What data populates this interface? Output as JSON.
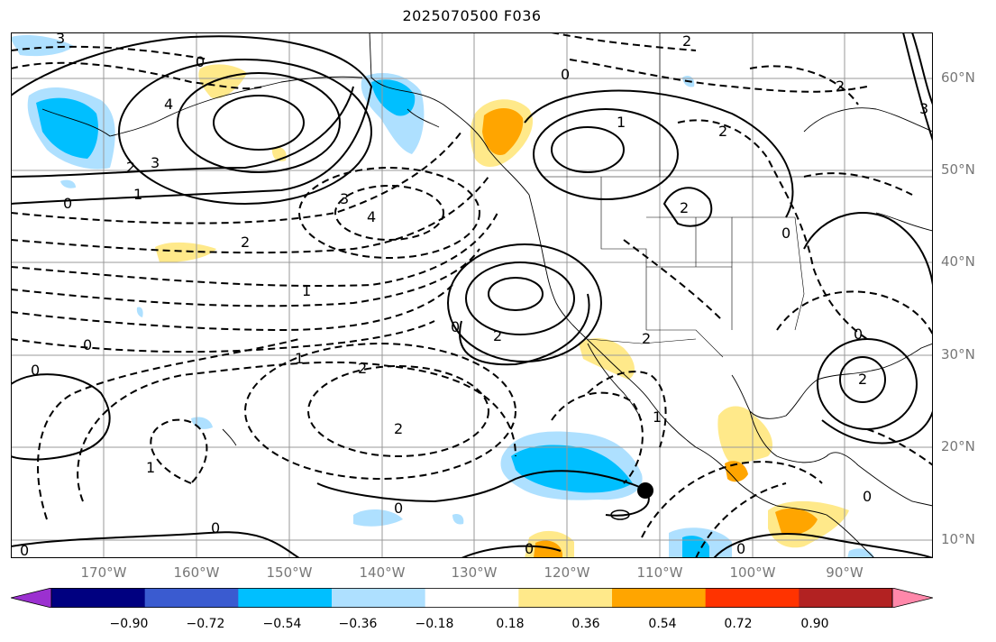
{
  "title": "2025070500 F036",
  "lat_labels": [
    "60°N",
    "50°N",
    "40°N",
    "30°N",
    "20°N",
    "10°N"
  ],
  "lon_labels": [
    "170°W",
    "160°W",
    "150°W",
    "140°W",
    "130°W",
    "120°W",
    "110°W",
    "100°W",
    "90°W"
  ],
  "contour_labels": [
    "0",
    "1",
    "2",
    "3",
    "4",
    "-1",
    "-2",
    "-3",
    "-4"
  ],
  "colorbar": {
    "ticks": [
      "−0.90",
      "−0.72",
      "−0.54",
      "−0.36",
      "−0.18",
      "0.18",
      "0.36",
      "0.54",
      "0.72",
      "0.90"
    ],
    "colors": [
      "#9b30d0",
      "#000080",
      "#3a5bd0",
      "#00bfff",
      "#aee0ff",
      "#ffffff",
      "#ffe98a",
      "#ffa500",
      "#ff3300",
      "#b22222",
      "#ff88aa"
    ]
  }
}
